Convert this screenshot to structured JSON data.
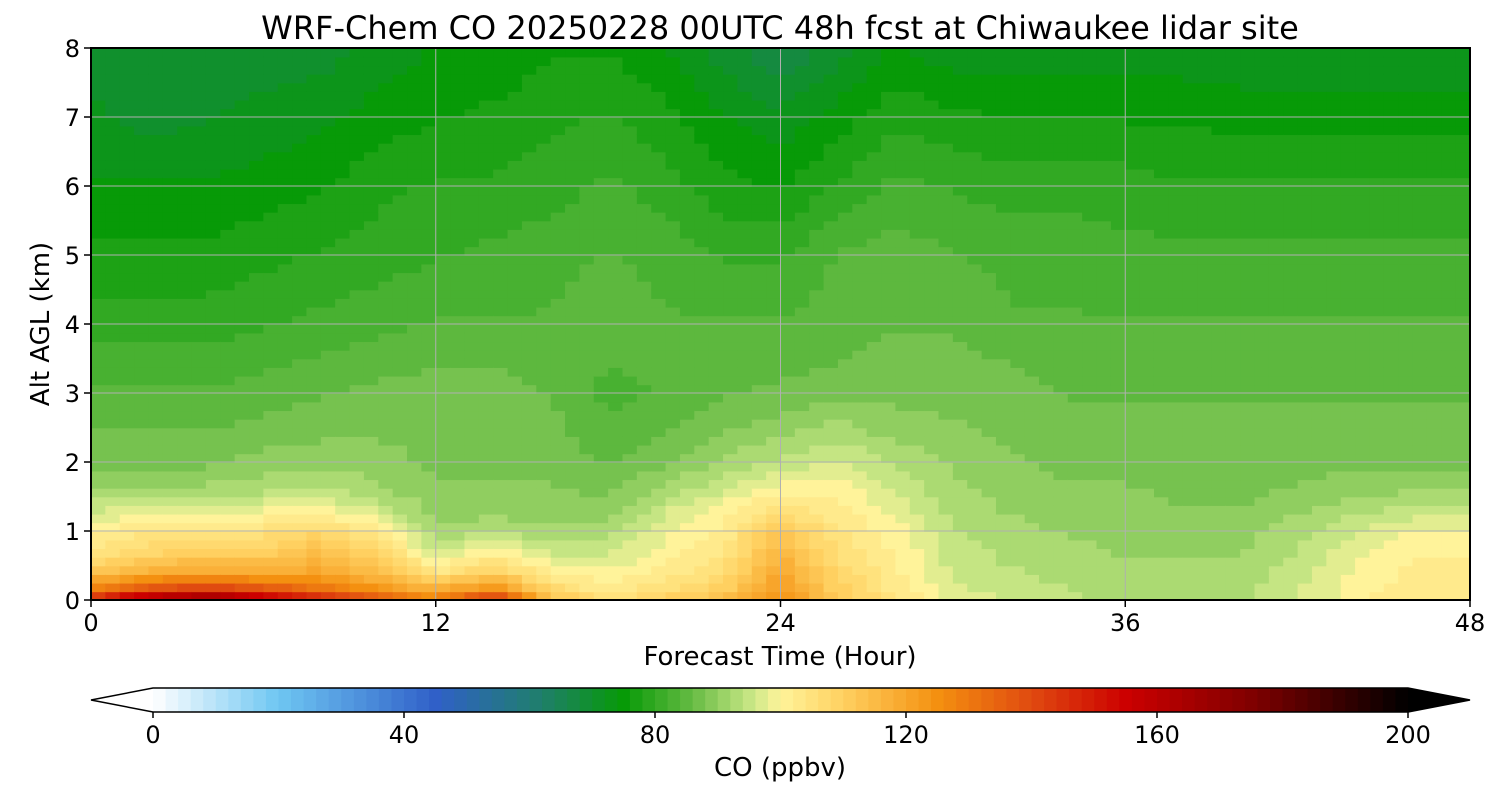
{
  "chart_data": {
    "type": "heatmap",
    "title": "WRF-Chem CO  20250228 00UTC 48h fcst at Chiwaukee lidar site",
    "xlabel": "Forecast Time (Hour)",
    "ylabel": "Alt AGL (km)",
    "xlim": [
      0,
      48
    ],
    "ylim": [
      0,
      8
    ],
    "x_ticks": [
      "0",
      "12",
      "24",
      "36",
      "48"
    ],
    "y_ticks": [
      "0",
      "1",
      "2",
      "3",
      "4",
      "5",
      "6",
      "7",
      "8"
    ],
    "grid": true,
    "colorbar": {
      "label": "CO  (ppbv)",
      "range": [
        0,
        200
      ],
      "extend": "both",
      "ticks": [
        "0",
        "40",
        "80",
        "120",
        "160",
        "200"
      ],
      "stops": [
        {
          "value": 0,
          "color": "#ffffff"
        },
        {
          "value": 20,
          "color": "#6ec6f2"
        },
        {
          "value": 45,
          "color": "#3060c8"
        },
        {
          "value": 62,
          "color": "#1f7f6a"
        },
        {
          "value": 75,
          "color": "#079a07"
        },
        {
          "value": 86,
          "color": "#66bb44"
        },
        {
          "value": 96,
          "color": "#d0ea8a"
        },
        {
          "value": 100,
          "color": "#fff39a"
        },
        {
          "value": 110,
          "color": "#ffd060"
        },
        {
          "value": 125,
          "color": "#f49010"
        },
        {
          "value": 140,
          "color": "#e04a10"
        },
        {
          "value": 155,
          "color": "#cc0000"
        },
        {
          "value": 175,
          "color": "#800000"
        },
        {
          "value": 200,
          "color": "#000000"
        }
      ]
    },
    "x_hours": [
      0,
      2,
      4,
      6,
      8,
      10,
      12,
      14,
      16,
      18,
      20,
      22,
      24,
      26,
      28,
      30,
      32,
      34,
      36,
      38,
      40,
      42,
      44,
      46,
      48
    ],
    "y_km": [
      0,
      0.15,
      0.4,
      0.7,
      1.0,
      1.3,
      1.6,
      2.0,
      2.5,
      3.0,
      3.5,
      4.0,
      5.0,
      6.0,
      7.0,
      8.0
    ],
    "co_ppbv_by_hour": [
      [
        150,
        130,
        112,
        104,
        100,
        96,
        92,
        88,
        86,
        84,
        82,
        80,
        77,
        74,
        72,
        70
      ],
      [
        170,
        140,
        118,
        108,
        104,
        98,
        92,
        88,
        86,
        84,
        82,
        80,
        77,
        74,
        70,
        69
      ],
      [
        175,
        145,
        120,
        110,
        104,
        98,
        92,
        88,
        86,
        84,
        82,
        80,
        77,
        74,
        71,
        70
      ],
      [
        165,
        140,
        118,
        110,
        105,
        99,
        93,
        90,
        87,
        85,
        83,
        81,
        78,
        75,
        72,
        70
      ],
      [
        150,
        132,
        120,
        114,
        108,
        100,
        94,
        90,
        88,
        86,
        84,
        82,
        79,
        76,
        73,
        70
      ],
      [
        140,
        125,
        114,
        108,
        102,
        96,
        92,
        90,
        88,
        87,
        85,
        83,
        80,
        78,
        75,
        72
      ],
      [
        130,
        118,
        104,
        96,
        92,
        90,
        89,
        88,
        88,
        87,
        86,
        84,
        81,
        79,
        76,
        74
      ],
      [
        150,
        126,
        110,
        100,
        94,
        90,
        89,
        88,
        88,
        87,
        86,
        84,
        82,
        79,
        77,
        74
      ],
      [
        115,
        108,
        102,
        96,
        92,
        90,
        89,
        88,
        87,
        86,
        85,
        84,
        83,
        80,
        78,
        76
      ],
      [
        106,
        102,
        99,
        96,
        93,
        90,
        88,
        86,
        84,
        83,
        84,
        85,
        84,
        82,
        79,
        76
      ],
      [
        110,
        106,
        102,
        100,
        98,
        96,
        92,
        88,
        86,
        84,
        84,
        84,
        83,
        80,
        77,
        74
      ],
      [
        115,
        110,
        106,
        104,
        102,
        100,
        96,
        92,
        88,
        86,
        85,
        84,
        81,
        77,
        74,
        70
      ],
      [
        125,
        122,
        120,
        116,
        112,
        106,
        100,
        94,
        90,
        87,
        85,
        84,
        81,
        76,
        72,
        66
      ],
      [
        112,
        110,
        108,
        106,
        104,
        102,
        100,
        97,
        92,
        88,
        86,
        85,
        84,
        79,
        75,
        70
      ],
      [
        104,
        103,
        102,
        101,
        100,
        98,
        96,
        93,
        90,
        88,
        87,
        86,
        85,
        82,
        78,
        74
      ],
      [
        98,
        97,
        96,
        95,
        94,
        93,
        92,
        91,
        89,
        88,
        87,
        86,
        84,
        81,
        77,
        72
      ],
      [
        96,
        95,
        94,
        93,
        92,
        91,
        90,
        89,
        88,
        87,
        86,
        84,
        83,
        80,
        76,
        72
      ],
      [
        94,
        94,
        93,
        92,
        91,
        90,
        89,
        88,
        87,
        86,
        85,
        84,
        83,
        80,
        76,
        72
      ],
      [
        93,
        93,
        92,
        91,
        90,
        90,
        89,
        88,
        87,
        86,
        85,
        84,
        82,
        80,
        76,
        72
      ],
      [
        92,
        92,
        92,
        91,
        90,
        89,
        88,
        88,
        87,
        86,
        85,
        84,
        82,
        79,
        76,
        72
      ],
      [
        93,
        93,
        92,
        91,
        90,
        89,
        88,
        87,
        87,
        86,
        85,
        84,
        82,
        79,
        75,
        72
      ],
      [
        96,
        96,
        95,
        94,
        93,
        91,
        89,
        88,
        87,
        86,
        85,
        84,
        82,
        79,
        75,
        72
      ],
      [
        100,
        100,
        99,
        98,
        96,
        93,
        90,
        88,
        87,
        86,
        85,
        84,
        82,
        79,
        75,
        72
      ],
      [
        104,
        103,
        102,
        101,
        99,
        95,
        91,
        88,
        87,
        86,
        85,
        84,
        82,
        79,
        75,
        72
      ],
      [
        103,
        103,
        102,
        101,
        99,
        95,
        91,
        88,
        87,
        86,
        85,
        84,
        82,
        79,
        75,
        72
      ]
    ]
  }
}
